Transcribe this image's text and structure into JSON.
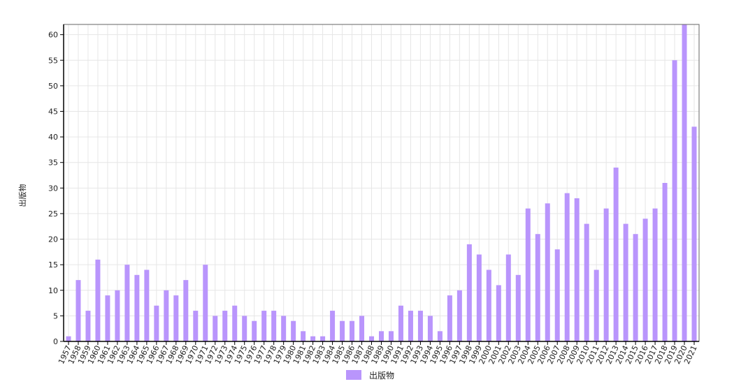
{
  "chart_data": {
    "type": "bar",
    "title": "",
    "xlabel": "",
    "ylabel": "出版物",
    "ylim": [
      0,
      62
    ],
    "yticks": [
      0,
      5,
      10,
      15,
      20,
      25,
      30,
      35,
      40,
      45,
      50,
      55,
      60
    ],
    "grid": true,
    "legend_placement": "bottom",
    "bar_color": "#b995fc",
    "categories": [
      "1957",
      "1958",
      "1959",
      "1960",
      "1961",
      "1962",
      "1963",
      "1964",
      "1965",
      "1966",
      "1967",
      "1968",
      "1969",
      "1970",
      "1971",
      "1972",
      "1973",
      "1974",
      "1975",
      "1976",
      "1977",
      "1978",
      "1979",
      "1980",
      "1981",
      "1982",
      "1983",
      "1984",
      "1985",
      "1986",
      "1987",
      "1988",
      "1989",
      "1990",
      "1991",
      "1992",
      "1993",
      "1994",
      "1995",
      "1996",
      "1997",
      "1998",
      "1999",
      "2000",
      "2001",
      "2002",
      "2003",
      "2004",
      "2005",
      "2006",
      "2007",
      "2008",
      "2009",
      "2010",
      "2011",
      "2012",
      "2013",
      "2014",
      "2015",
      "2016",
      "2017",
      "2018",
      "2019",
      "2020",
      "2021"
    ],
    "series": [
      {
        "name": "出版物",
        "values": [
          1,
          12,
          6,
          16,
          9,
          10,
          15,
          13,
          14,
          7,
          10,
          9,
          12,
          6,
          15,
          5,
          6,
          7,
          5,
          4,
          6,
          6,
          5,
          4,
          2,
          1,
          1,
          6,
          4,
          4,
          5,
          1,
          2,
          2,
          7,
          6,
          6,
          5,
          2,
          9,
          10,
          19,
          17,
          14,
          11,
          17,
          13,
          26,
          21,
          27,
          18,
          29,
          28,
          23,
          14,
          26,
          34,
          23,
          21,
          24,
          26,
          31,
          55,
          62,
          42
        ]
      }
    ]
  }
}
